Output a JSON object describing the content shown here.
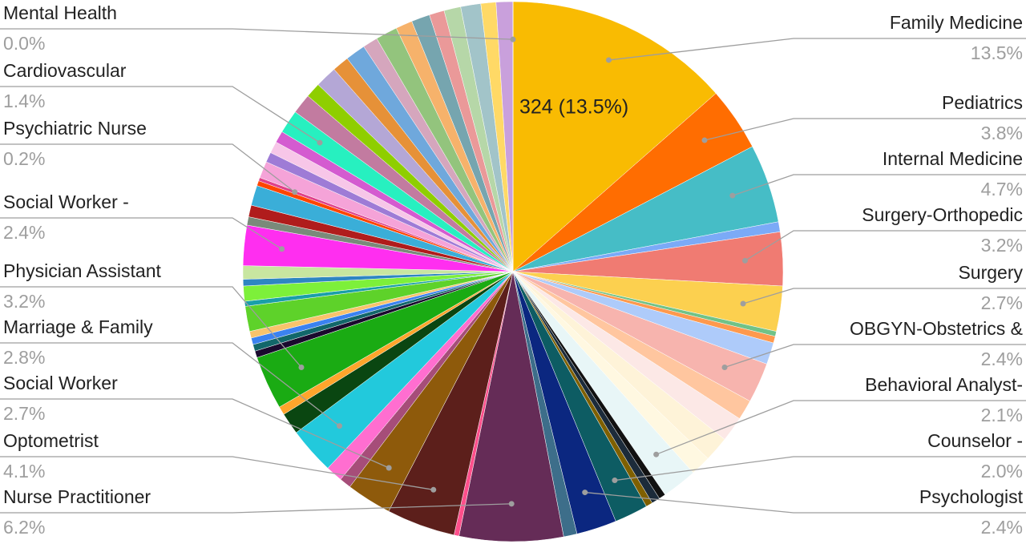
{
  "chart_data": {
    "type": "pie",
    "annotation": "324 (13.5%)",
    "categories": [
      "Family Medicine",
      "Pediatrics",
      "Internal Medicine",
      null,
      "Surgery-Orthopedic",
      "Surgery",
      null,
      null,
      null,
      "OBGYN-Obstetrics &",
      null,
      null,
      null,
      null,
      "Behavioral Analyst-",
      null,
      null,
      null,
      "Counselor -",
      "Psychologist",
      null,
      "Nurse Practitioner",
      null,
      "Optometrist",
      "Social Worker",
      null,
      null,
      "Marriage & Family",
      null,
      null,
      "Physician Assistant",
      null,
      null,
      null,
      null,
      null,
      null,
      null,
      null,
      null,
      "Social Worker -",
      null,
      null,
      null,
      null,
      "Psychiatric Nurse",
      null,
      null,
      null,
      null,
      "Cardiovascular",
      null,
      null,
      null,
      null,
      null,
      null,
      null,
      null,
      null,
      null,
      null,
      null,
      null,
      null,
      "Mental Health"
    ],
    "values": [
      13.5,
      3.8,
      4.7,
      0.6,
      3.2,
      2.7,
      0.3,
      0.4,
      1.3,
      2.4,
      1.2,
      1.5,
      1.5,
      1.2,
      2.1,
      0.4,
      0.5,
      0.4,
      2.0,
      2.4,
      0.8,
      6.2,
      0.3,
      4.1,
      2.7,
      0.7,
      1.0,
      2.8,
      1.3,
      0.5,
      3.2,
      0.4,
      0.4,
      0.4,
      0.4,
      1.5,
      0.3,
      0.9,
      0.4,
      0.8,
      2.4,
      0.5,
      0.7,
      1.2,
      0.3,
      0.2,
      1.0,
      0.6,
      0.7,
      0.7,
      1.4,
      1.2,
      0.9,
      1.3,
      1.0,
      1.2,
      0.9,
      1.3,
      1.0,
      1.1,
      0.9,
      1.0,
      1.2,
      0.9,
      1.0,
      0.0
    ],
    "value_labels": [
      "13.5%",
      "3.8%",
      "4.7%",
      null,
      "3.2%",
      "2.7%",
      null,
      null,
      null,
      "2.4%",
      null,
      null,
      null,
      null,
      "2.1%",
      null,
      null,
      null,
      "2.0%",
      "2.4%",
      null,
      "6.2%",
      null,
      "4.1%",
      "2.7%",
      null,
      null,
      "2.8%",
      null,
      null,
      "3.2%",
      null,
      null,
      null,
      null,
      null,
      null,
      null,
      null,
      null,
      "2.4%",
      null,
      null,
      null,
      null,
      "0.2%",
      null,
      null,
      null,
      null,
      "1.4%",
      null,
      null,
      null,
      null,
      null,
      null,
      null,
      null,
      null,
      null,
      null,
      null,
      null,
      null,
      "0.0%"
    ],
    "colors": [
      "#f9bb02",
      "#ff6d01",
      "#46bdc6",
      "#7baaf7",
      "#f07b72",
      "#fcd04f",
      "#71c287",
      "#ff994d",
      "#aecbfa",
      "#f7b4ae",
      "#ffc69f",
      "#fce8e6",
      "#fef3d8",
      "#fff8e1",
      "#e8f6f7",
      "#111111",
      "#1c2b3a",
      "#7f6000",
      "#0d5c63",
      "#0b2780",
      "#3d6e8a",
      "#652c57",
      "#ff4f8b",
      "#5c1f1b",
      "#8e5a0b",
      "#a64d79",
      "#ff6ed0",
      "#22c9dc",
      "#0a4611",
      "#ffa52c",
      "#1aab13",
      "#1a0a2e",
      "#12676a",
      "#3b82f0",
      "#f8c36c",
      "#5ed22a",
      "#1a9fa8",
      "#7df03a",
      "#2e86c1",
      "#c8e6a0",
      "#ff2ef0",
      "#7a8a7a",
      "#b01c1c",
      "#3aaed8",
      "#ff4500",
      "#e0408a",
      "#f5a3d8",
      "#9e7bd6",
      "#f7c6e8",
      "#d45bd0",
      "#27f0c0",
      "#c27ba0",
      "#8fce00",
      "#b4a7d6",
      "#e69138",
      "#6fa8dc",
      "#d5a6bd",
      "#93c47d",
      "#f6b26b",
      "#76a5af",
      "#ea9999",
      "#b6d7a8",
      "#a2c4c9",
      "#ffd966",
      "#c9a0dc",
      "#ea4335"
    ]
  }
}
